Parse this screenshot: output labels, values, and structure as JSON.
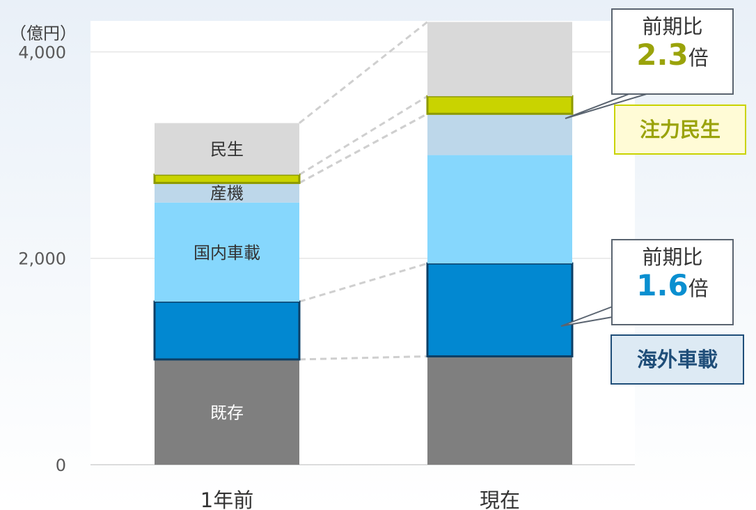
{
  "chart_data": {
    "type": "bar",
    "stacked": true,
    "unit_label": "（億円）",
    "categories": [
      "1年前",
      "現在"
    ],
    "series": [
      {
        "name": "既存",
        "values": [
          1020,
          1050
        ],
        "color": "#7f7f7f"
      },
      {
        "name": "",
        "values": [
          560,
          900
        ],
        "color": "#0288d1"
      },
      {
        "name": "国内車載",
        "values": [
          960,
          1050
        ],
        "color": "#86d7fd"
      },
      {
        "name": "産機",
        "values": [
          190,
          400
        ],
        "color": "#bdd7ea"
      },
      {
        "name": "",
        "values": [
          80,
          170
        ],
        "color": "#c9d300"
      },
      {
        "name": "民生",
        "values": [
          500,
          720
        ],
        "color": "#d9d9d9"
      }
    ],
    "yticks": [
      "0",
      "2,000",
      "4,000"
    ],
    "ytick_values": [
      0,
      2000,
      4000
    ],
    "ylim": [
      0,
      4300
    ],
    "grid": true
  },
  "callouts": {
    "top": {
      "prefix": "前期比",
      "number": "2.3",
      "suffix": "倍",
      "number_color": "#9aa30a"
    },
    "bottom": {
      "prefix": "前期比",
      "number": "1.6",
      "suffix": "倍",
      "number_color": "#0a8fd0"
    }
  },
  "tags": {
    "top": {
      "label": "注力民生",
      "color": "#9aa30a"
    },
    "bottom": {
      "label": "海外車載",
      "color": "#1f4e79"
    }
  }
}
